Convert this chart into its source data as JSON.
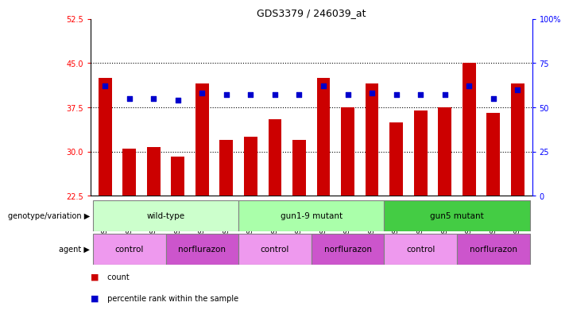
{
  "title": "GDS3379 / 246039_at",
  "samples": [
    "GSM323075",
    "GSM323076",
    "GSM323077",
    "GSM323078",
    "GSM323079",
    "GSM323080",
    "GSM323081",
    "GSM323082",
    "GSM323083",
    "GSM323084",
    "GSM323085",
    "GSM323086",
    "GSM323087",
    "GSM323088",
    "GSM323089",
    "GSM323090",
    "GSM323091",
    "GSM323092"
  ],
  "counts": [
    42.5,
    30.5,
    30.8,
    29.2,
    41.5,
    32.0,
    32.5,
    35.5,
    32.0,
    42.5,
    37.5,
    41.5,
    35.0,
    37.0,
    37.5,
    45.0,
    36.5,
    41.5
  ],
  "percentile_ranks": [
    62,
    55,
    55,
    54,
    58,
    57,
    57,
    57,
    57,
    62,
    57,
    58,
    57,
    57,
    57,
    62,
    55,
    60
  ],
  "ylim_left": [
    22.5,
    52.5
  ],
  "ylim_right": [
    0,
    100
  ],
  "yticks_left": [
    22.5,
    30,
    37.5,
    45,
    52.5
  ],
  "yticks_right": [
    0,
    25,
    50,
    75,
    100
  ],
  "ytick_labels_right": [
    "0",
    "25",
    "50",
    "75",
    "100%"
  ],
  "bar_color": "#cc0000",
  "dot_color": "#0000cc",
  "bar_bottom": 22.5,
  "genotype_groups": [
    {
      "label": "wild-type",
      "start": 0,
      "end": 6,
      "color": "#ccffcc"
    },
    {
      "label": "gun1-9 mutant",
      "start": 6,
      "end": 12,
      "color": "#aaffaa"
    },
    {
      "label": "gun5 mutant",
      "start": 12,
      "end": 18,
      "color": "#44cc44"
    }
  ],
  "agent_groups": [
    {
      "label": "control",
      "start": 0,
      "end": 3,
      "color": "#ee99ee"
    },
    {
      "label": "norflurazon",
      "start": 3,
      "end": 6,
      "color": "#cc55cc"
    },
    {
      "label": "control",
      "start": 6,
      "end": 9,
      "color": "#ee99ee"
    },
    {
      "label": "norflurazon",
      "start": 9,
      "end": 12,
      "color": "#cc55cc"
    },
    {
      "label": "control",
      "start": 12,
      "end": 15,
      "color": "#ee99ee"
    },
    {
      "label": "norflurazon",
      "start": 15,
      "end": 18,
      "color": "#cc55cc"
    }
  ],
  "legend_count_color": "#cc0000",
  "legend_dot_color": "#0000cc"
}
